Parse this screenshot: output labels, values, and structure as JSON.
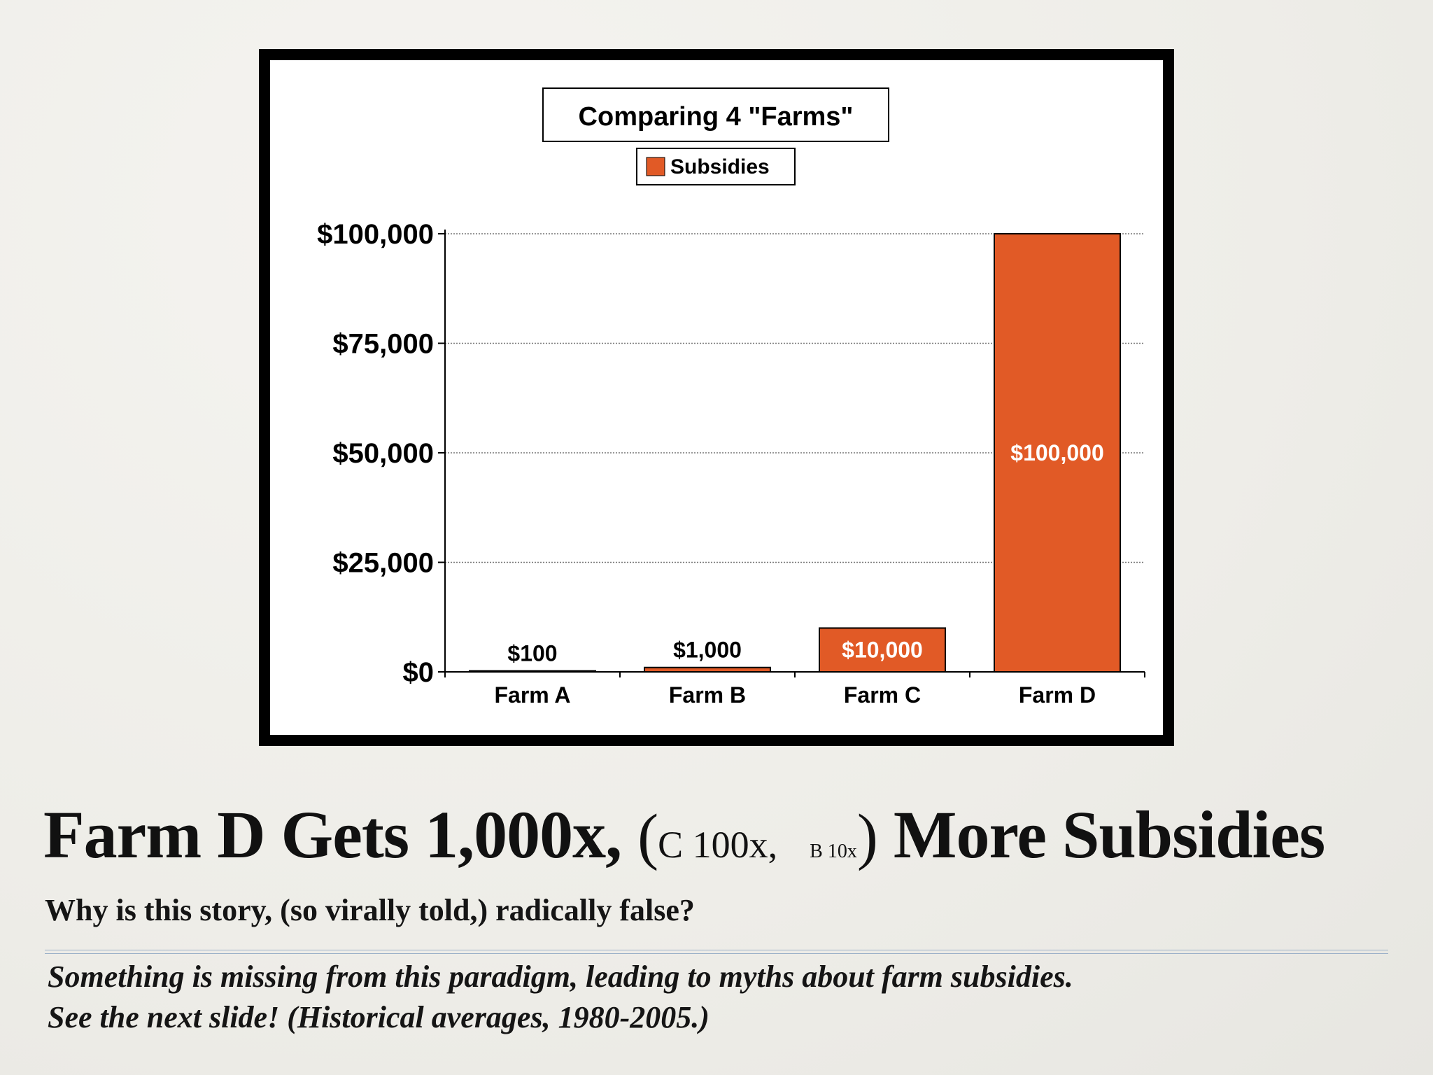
{
  "chart_data": {
    "type": "bar",
    "title": "Comparing 4 \"Farms\"",
    "legend": {
      "label": "Subsidies",
      "placement": "top-center"
    },
    "categories": [
      "Farm A",
      "Farm B",
      "Farm C",
      "Farm D"
    ],
    "series": [
      {
        "name": "Subsidies",
        "values": [
          100,
          1000,
          10000,
          100000
        ],
        "color": "#e15a26"
      }
    ],
    "data_labels": [
      "$100",
      "$1,000",
      "$10,000",
      "$100,000"
    ],
    "ylim": [
      0,
      100000
    ],
    "yticks": [
      0,
      25000,
      50000,
      75000,
      100000
    ],
    "ytick_labels": [
      "$0",
      "$25,000",
      "$50,000",
      "$75,000",
      "$100,000"
    ],
    "xlabel": "",
    "ylabel": "",
    "grid": true
  },
  "headline": {
    "main": "Farm D Gets 1,000x,",
    "open_paren": "(",
    "c_part": "C 100x,",
    "b_part": "B 10x",
    "close_paren": ")",
    "tail": "More Subsidies"
  },
  "subtitle": "Why is this story, (so virally told,) radically false?",
  "notes": [
    "Something is missing from this paradigm, leading to myths about farm subsidies.",
    "See the next slide!  (Historical averages, 1980-2005.)"
  ],
  "colors": {
    "bar": "#e15a26",
    "frame": "#000000",
    "divider": "#9bb0c8"
  }
}
